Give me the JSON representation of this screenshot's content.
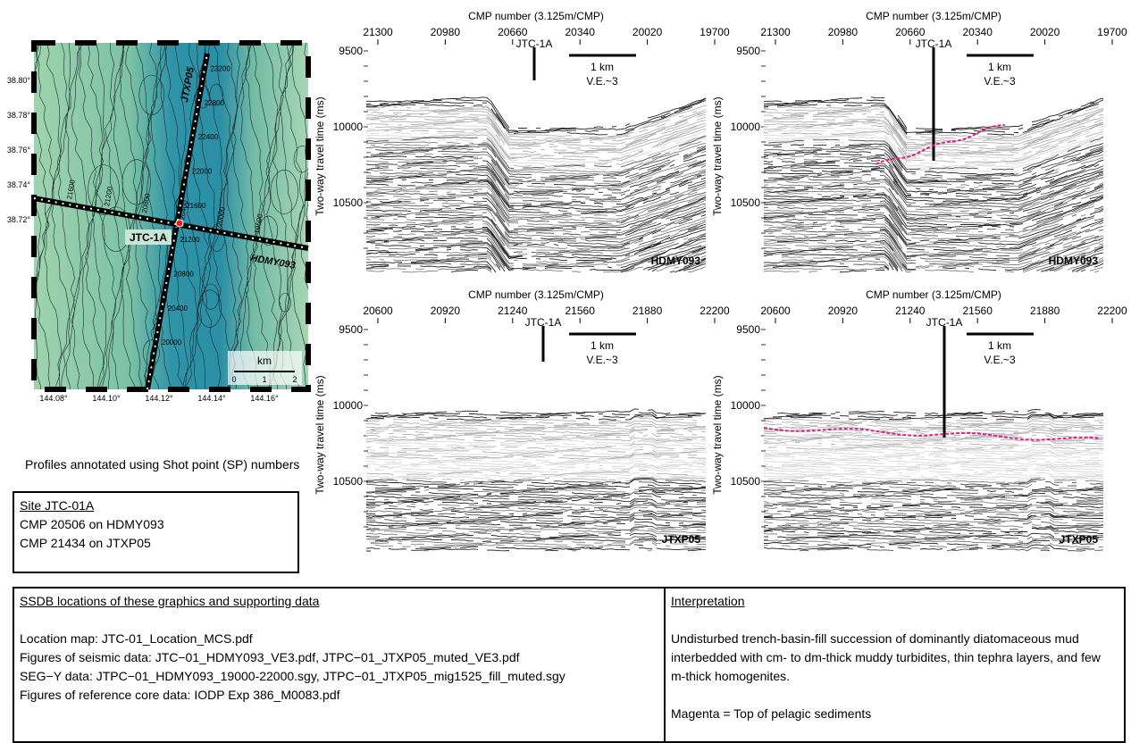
{
  "map": {
    "lat_labels": [
      "38.80°",
      "38.78°",
      "38.76°",
      "38.74°",
      "38.72°"
    ],
    "lon_labels": [
      "144.08°",
      "144.10°",
      "144.12°",
      "144.14°",
      "144.16°"
    ],
    "site": "JTC-1A",
    "lines": [
      "JTXP05",
      "HDMY093"
    ],
    "jtxp05_sp": [
      "23200",
      "22800",
      "22400",
      "22000",
      "21600",
      "21200",
      "20800",
      "20400",
      "20000"
    ],
    "hdmy093_sp": [
      "21600",
      "21200",
      "20800",
      "20400",
      "20000",
      "19600"
    ],
    "scale_title": "km",
    "scale_ticks": [
      "0",
      "1",
      "2"
    ]
  },
  "panels": [
    {
      "x_title": "CMP number (3.125m/CMP)",
      "xticks": [
        "21300",
        "20980",
        "20660",
        "20340",
        "20020",
        "19700"
      ],
      "y_title": "Two-way travel time (ms)",
      "yticks": [
        "9500",
        "10000",
        "10500"
      ],
      "site": "JTC-1A",
      "scale": "1 km",
      "ve": "V.E.~3",
      "profile": "HDMY093"
    },
    {
      "x_title": "CMP number (3.125m/CMP)",
      "xticks": [
        "21300",
        "20980",
        "20660",
        "20340",
        "20020",
        "19700"
      ],
      "y_title": "Two-way travel time (ms)",
      "yticks": [
        "9500",
        "10000",
        "10500"
      ],
      "site": "JTC-1A",
      "scale": "1 km",
      "ve": "V.E.~3",
      "profile": "HDMY093"
    },
    {
      "x_title": "CMP number (3.125m/CMP)",
      "xticks": [
        "20600",
        "20920",
        "21240",
        "21560",
        "21880",
        "22200"
      ],
      "y_title": "Two-way travel time (ms)",
      "yticks": [
        "9500",
        "10000",
        "10500"
      ],
      "site": "JTC-1A",
      "scale": "1 km",
      "ve": "V.E.~3",
      "profile": "JTXP05"
    },
    {
      "x_title": "CMP number (3.125m/CMP)",
      "xticks": [
        "20600",
        "20920",
        "21240",
        "21560",
        "21880",
        "22200"
      ],
      "y_title": "Two-way travel time (ms)",
      "yticks": [
        "9500",
        "10000",
        "10500"
      ],
      "site": "JTC-1A",
      "scale": "1 km",
      "ve": "V.E.~3",
      "profile": "JTXP05"
    }
  ],
  "note": "Profiles annotated using Shot point (SP) numbers",
  "site_box": {
    "title": "Site JTC-01A",
    "lines": [
      "CMP 20506 on HDMY093",
      "CMP 21434 on JTXP05"
    ]
  },
  "ssdb": {
    "title": "SSDB locations of these graphics and supporting data",
    "lines": [
      "Location map: JTC-01_Location_MCS.pdf",
      "Figures of seismic data: JTC−01_HDMY093_VE3.pdf, JTPC−01_JTXP05_muted_VE3.pdf",
      "SEG−Y data: JTPC−01_HDMY093_19000-22000.sgy, JTPC−01_JTXP05_mig1525_fill_muted.sgy",
      "Figures of reference core data: IODP Exp 386_M0083.pdf"
    ]
  },
  "interpretation": {
    "title": "Interpretation",
    "paragraphs": [
      "Undisturbed trench-basin-fill succession of dominantly diatomaceous mud interbedded with cm- to dm-thick muddy turbidites, thin tephra layers, and few m-thick homogenites.",
      "Magenta = Top of pelagic sediments"
    ]
  }
}
